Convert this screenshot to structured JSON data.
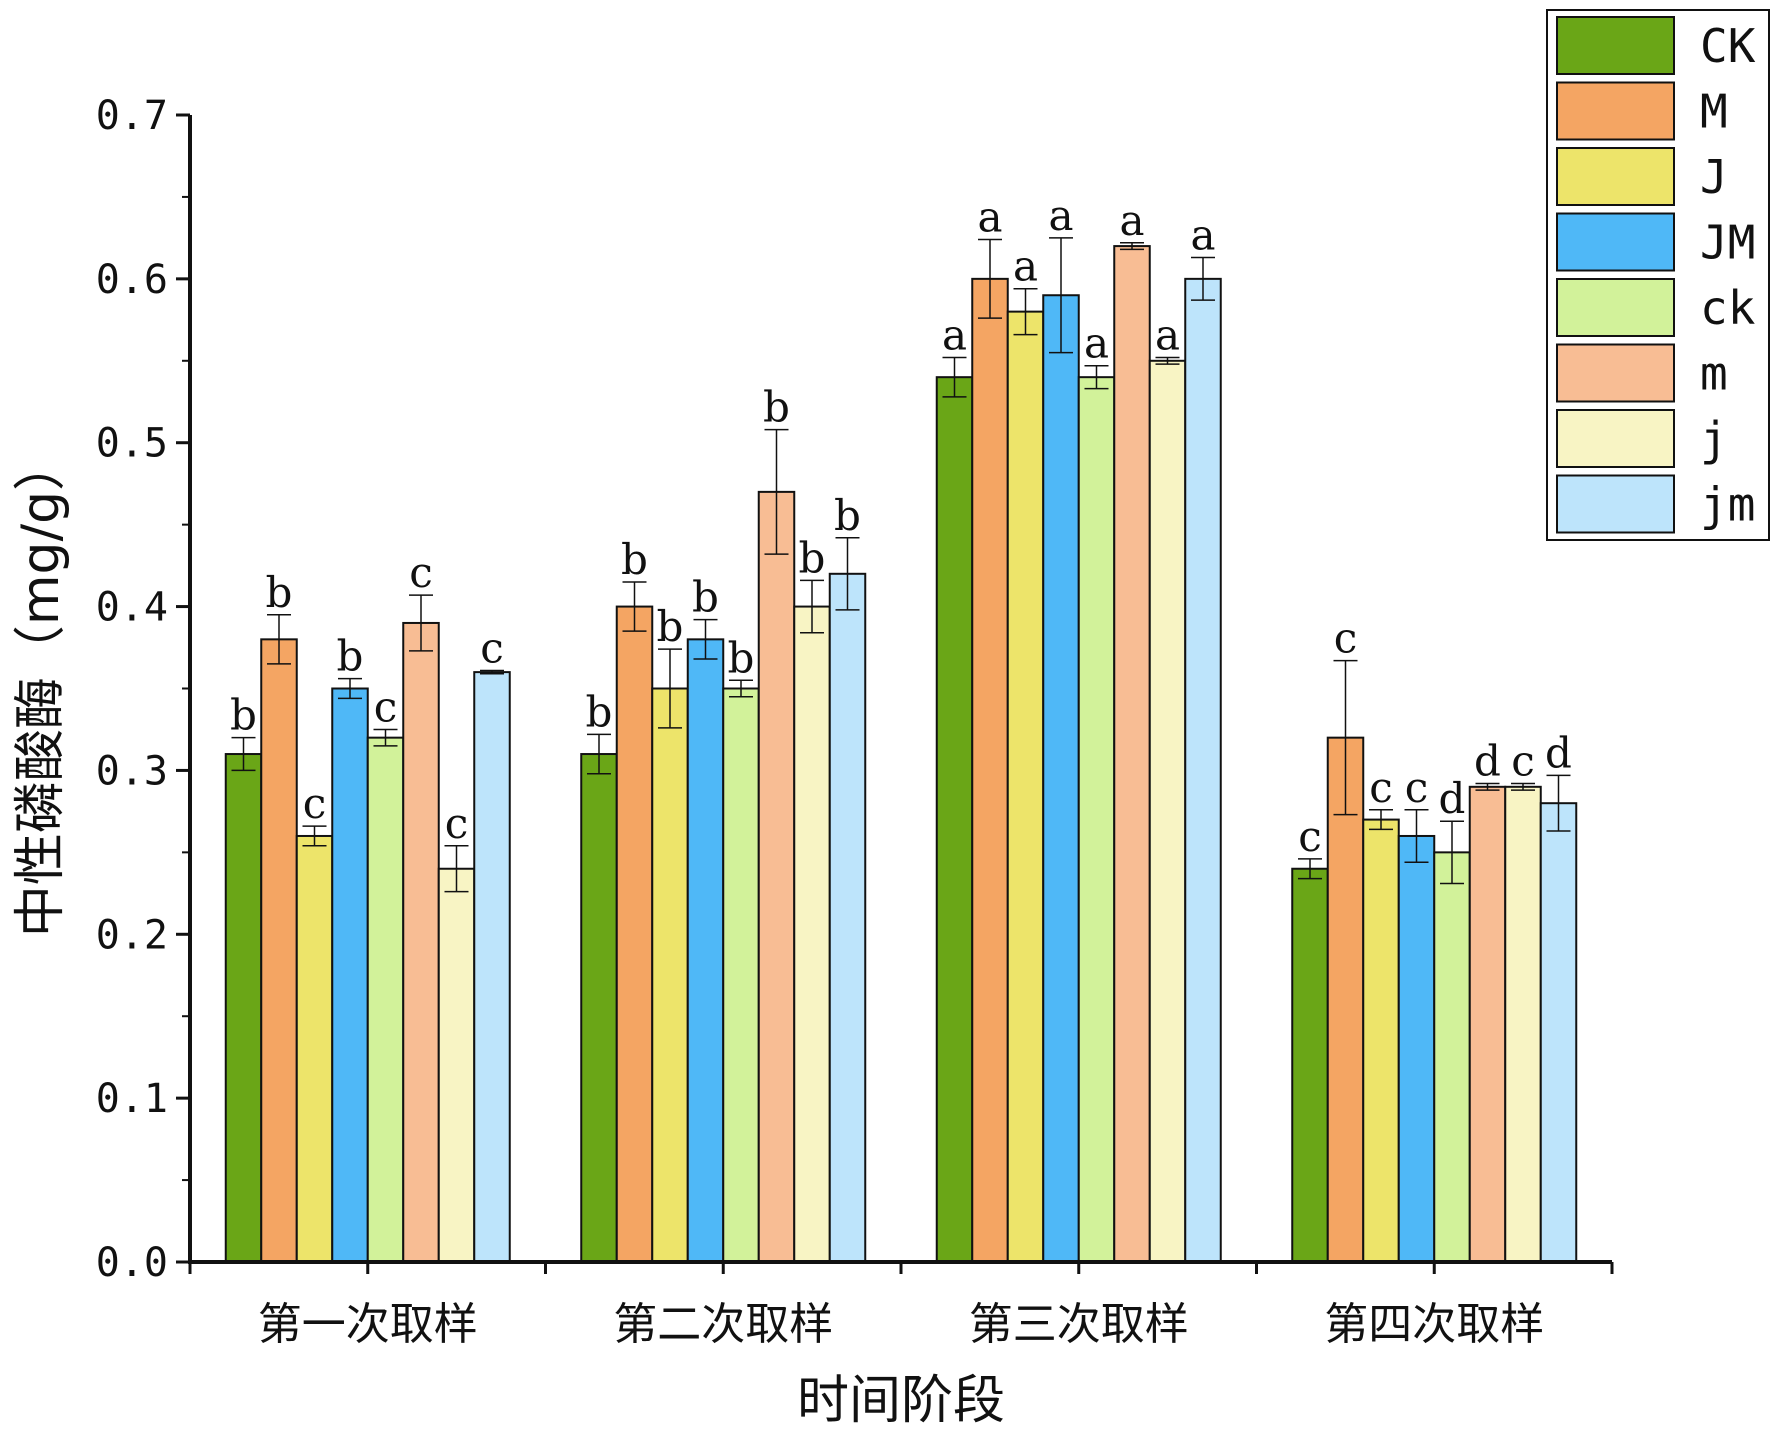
{
  "chart_data": {
    "type": "bar",
    "title": "",
    "xlabel": "时间阶段",
    "ylabel": "中性磷酸酶（mg/g）",
    "ylim": [
      0,
      0.7
    ],
    "yticks": [
      "0.0",
      "0.1",
      "0.2",
      "0.3",
      "0.4",
      "0.5",
      "0.6",
      "0.7"
    ],
    "grid": false,
    "legend_position": "top-right",
    "categories": [
      "第一次取样",
      "第二次取样",
      "第三次取样",
      "第四次取样"
    ],
    "series": [
      {
        "name": "CK",
        "color": "#6aa617",
        "values": [
          0.31,
          0.31,
          0.54,
          0.24
        ],
        "errors": [
          0.01,
          0.012,
          0.012,
          0.006
        ],
        "letters": [
          "b",
          "b",
          "a",
          "c"
        ]
      },
      {
        "name": "M",
        "color": "#f4a563",
        "values": [
          0.38,
          0.4,
          0.6,
          0.32
        ],
        "errors": [
          0.015,
          0.015,
          0.024,
          0.047
        ],
        "letters": [
          "b",
          "b",
          "a",
          "c"
        ]
      },
      {
        "name": "J",
        "color": "#ede46a",
        "values": [
          0.26,
          0.35,
          0.58,
          0.27
        ],
        "errors": [
          0.006,
          0.024,
          0.014,
          0.006
        ],
        "letters": [
          "c",
          "b",
          "a",
          "c"
        ]
      },
      {
        "name": "JM",
        "color": "#4fb8f7",
        "values": [
          0.35,
          0.38,
          0.59,
          0.26
        ],
        "errors": [
          0.006,
          0.012,
          0.035,
          0.016
        ],
        "letters": [
          "b",
          "b",
          "a",
          "c"
        ]
      },
      {
        "name": "ck",
        "color": "#d2f29a",
        "values": [
          0.32,
          0.35,
          0.54,
          0.25
        ],
        "errors": [
          0.005,
          0.005,
          0.007,
          0.019
        ],
        "letters": [
          "c",
          "b",
          "a",
          "d"
        ]
      },
      {
        "name": "m",
        "color": "#f8bd94",
        "values": [
          0.39,
          0.47,
          0.62,
          0.29
        ],
        "errors": [
          0.017,
          0.038,
          0.002,
          0.002
        ],
        "letters": [
          "c",
          "b",
          "a",
          "d"
        ]
      },
      {
        "name": "j",
        "color": "#f8f4c4",
        "values": [
          0.24,
          0.4,
          0.55,
          0.29
        ],
        "errors": [
          0.014,
          0.016,
          0.002,
          0.002
        ],
        "letters": [
          "c",
          "b",
          "a",
          "c"
        ]
      },
      {
        "name": "jm",
        "color": "#bde4fb",
        "values": [
          0.36,
          0.42,
          0.6,
          0.28
        ],
        "errors": [
          0.001,
          0.022,
          0.013,
          0.017
        ],
        "letters": [
          "c",
          "b",
          "a",
          "d"
        ]
      }
    ]
  }
}
